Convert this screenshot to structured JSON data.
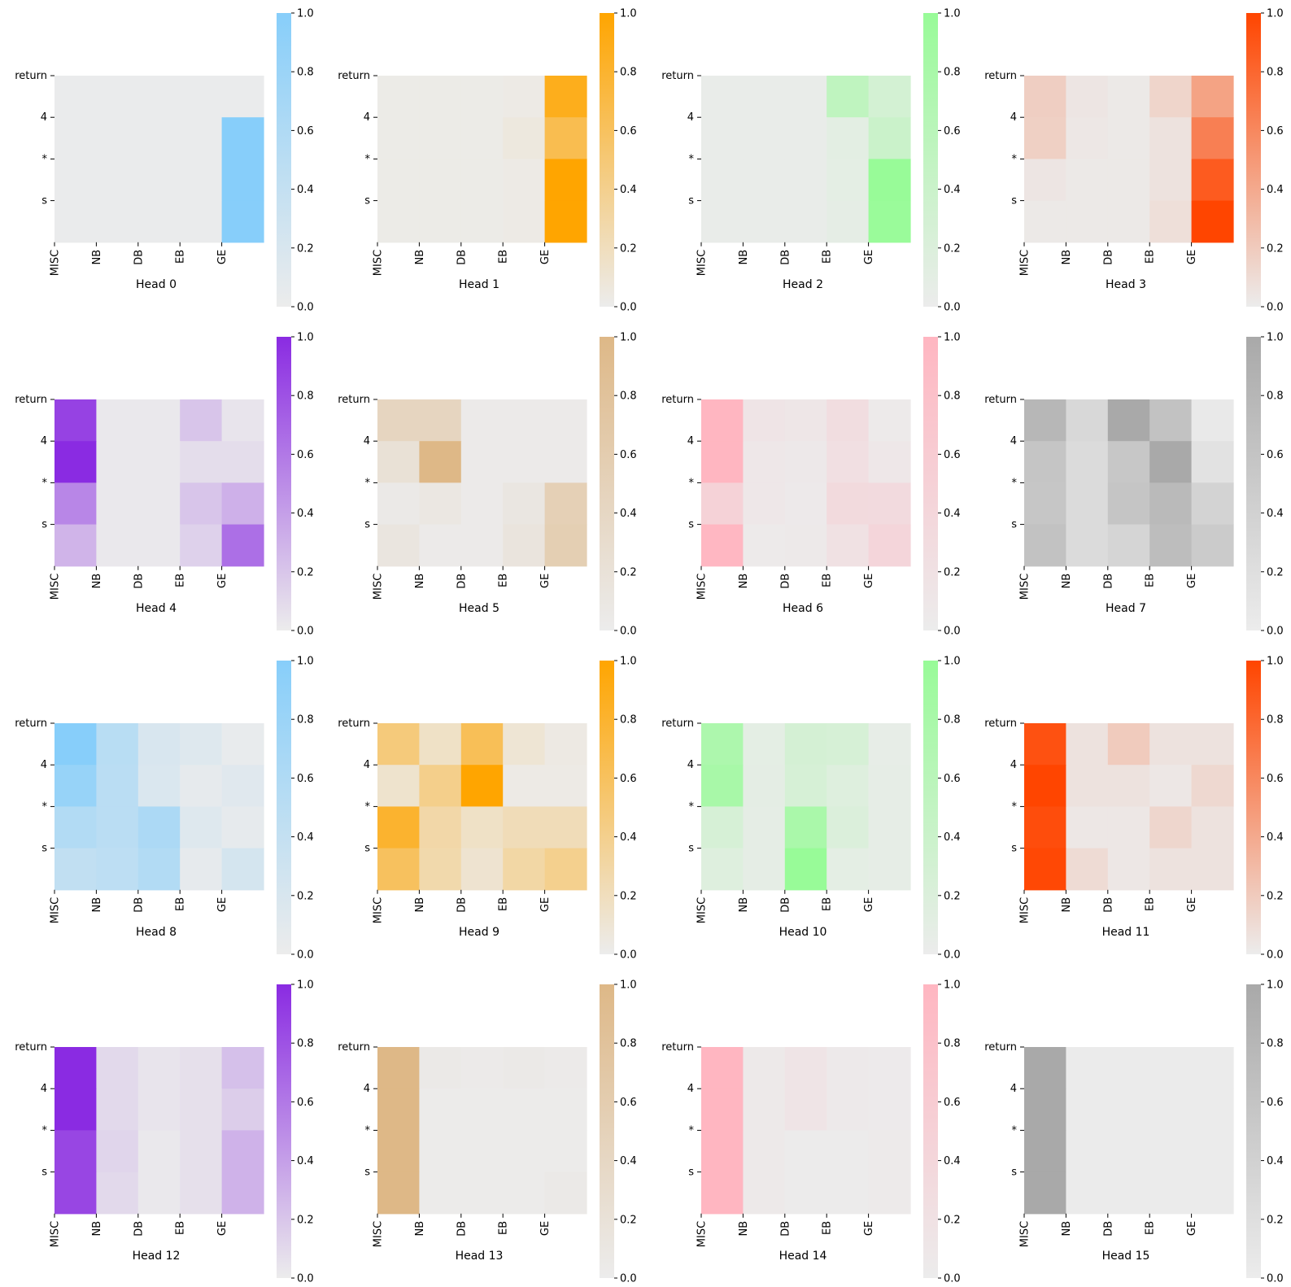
{
  "chart_data": {
    "type": "heatmap",
    "layout": {
      "rows": 4,
      "cols": 4
    },
    "row_labels": [
      "return",
      "4",
      "*",
      "s"
    ],
    "col_labels": [
      "MISC",
      "NB",
      "DB",
      "EB",
      "GE"
    ],
    "colorbar": {
      "min": 0.0,
      "max": 1.0,
      "ticks": [
        "0.0",
        "0.2",
        "0.4",
        "0.6",
        "0.8",
        "1.0"
      ]
    },
    "panels": [
      {
        "title": "Head 0",
        "color": "#87CEFA",
        "values": [
          [
            0.02,
            0.02,
            0.02,
            0.02,
            0.02
          ],
          [
            0.02,
            0.02,
            0.02,
            0.02,
            1.0
          ],
          [
            0.02,
            0.02,
            0.02,
            0.02,
            1.0
          ],
          [
            0.02,
            0.02,
            0.02,
            0.02,
            1.0
          ]
        ]
      },
      {
        "title": "Head 1",
        "color": "#FFA500",
        "values": [
          [
            0.02,
            0.02,
            0.02,
            0.03,
            0.88
          ],
          [
            0.02,
            0.02,
            0.02,
            0.06,
            0.66
          ],
          [
            0.02,
            0.02,
            0.02,
            0.03,
            1.0
          ],
          [
            0.02,
            0.02,
            0.02,
            0.03,
            1.0
          ]
        ]
      },
      {
        "title": "Head 2",
        "color": "#98FB98",
        "values": [
          [
            0.03,
            0.03,
            0.03,
            0.53,
            0.3
          ],
          [
            0.03,
            0.03,
            0.03,
            0.11,
            0.41
          ],
          [
            0.03,
            0.03,
            0.03,
            0.1,
            1.0
          ],
          [
            0.03,
            0.03,
            0.03,
            0.08,
            0.98
          ]
        ]
      },
      {
        "title": "Head 3",
        "color": "#FF4500",
        "values": [
          [
            0.18,
            0.04,
            0.02,
            0.14,
            0.44
          ],
          [
            0.17,
            0.03,
            0.02,
            0.06,
            0.65
          ],
          [
            0.04,
            0.02,
            0.02,
            0.06,
            0.87
          ],
          [
            0.02,
            0.02,
            0.02,
            0.08,
            1.0
          ]
        ]
      },
      {
        "title": "Head 4",
        "color": "#8A2BE2",
        "values": [
          [
            0.88,
            0.02,
            0.02,
            0.2,
            0.04
          ],
          [
            1.0,
            0.02,
            0.02,
            0.08,
            0.08
          ],
          [
            0.53,
            0.02,
            0.02,
            0.2,
            0.31
          ],
          [
            0.29,
            0.02,
            0.02,
            0.14,
            0.65
          ]
        ]
      },
      {
        "title": "Head 5",
        "color": "#DEB887",
        "values": [
          [
            0.44,
            0.44,
            0.03,
            0.03,
            0.03
          ],
          [
            0.22,
            1.0,
            0.03,
            0.03,
            0.03
          ],
          [
            0.05,
            0.1,
            0.03,
            0.11,
            0.53
          ],
          [
            0.13,
            0.03,
            0.03,
            0.15,
            0.56
          ]
        ]
      },
      {
        "title": "Head 6",
        "color": "#FFB6C1",
        "values": [
          [
            1.0,
            0.14,
            0.12,
            0.28,
            0.04
          ],
          [
            1.0,
            0.09,
            0.07,
            0.24,
            0.1
          ],
          [
            0.48,
            0.09,
            0.05,
            0.34,
            0.33
          ],
          [
            0.98,
            0.04,
            0.06,
            0.2,
            0.42
          ]
        ]
      },
      {
        "title": "Head 7",
        "color": "#A9A9A9",
        "values": [
          [
            0.79,
            0.3,
            1.0,
            0.62,
            0.04
          ],
          [
            0.58,
            0.26,
            0.55,
            1.0,
            0.15
          ],
          [
            0.57,
            0.25,
            0.58,
            0.75,
            0.38
          ],
          [
            0.62,
            0.25,
            0.34,
            0.7,
            0.5
          ]
        ]
      },
      {
        "title": "Head 8",
        "color": "#87CEFA",
        "values": [
          [
            1.0,
            0.51,
            0.2,
            0.14,
            0.04
          ],
          [
            0.84,
            0.5,
            0.18,
            0.06,
            0.12
          ],
          [
            0.57,
            0.5,
            0.63,
            0.14,
            0.06
          ],
          [
            0.43,
            0.47,
            0.57,
            0.06,
            0.24
          ]
        ]
      },
      {
        "title": "Head 9",
        "color": "#FFA500",
        "values": [
          [
            0.48,
            0.16,
            0.63,
            0.1,
            0.04
          ],
          [
            0.13,
            0.41,
            1.0,
            0.03,
            0.03
          ],
          [
            0.8,
            0.29,
            0.16,
            0.22,
            0.22
          ],
          [
            0.6,
            0.27,
            0.12,
            0.3,
            0.4
          ]
        ]
      },
      {
        "title": "Head 10",
        "color": "#98FB98",
        "values": [
          [
            0.75,
            0.1,
            0.28,
            0.26,
            0.06
          ],
          [
            0.81,
            0.09,
            0.26,
            0.17,
            0.07
          ],
          [
            0.26,
            0.08,
            0.79,
            0.2,
            0.07
          ],
          [
            0.17,
            0.08,
            1.0,
            0.1,
            0.07
          ]
        ]
      },
      {
        "title": "Head 11",
        "color": "#FF4500",
        "values": [
          [
            0.93,
            0.06,
            0.2,
            0.06,
            0.06
          ],
          [
            1.0,
            0.06,
            0.06,
            0.03,
            0.12
          ],
          [
            0.95,
            0.03,
            0.03,
            0.13,
            0.06
          ],
          [
            0.98,
            0.1,
            0.03,
            0.06,
            0.06
          ]
        ]
      },
      {
        "title": "Head 12",
        "color": "#8A2BE2",
        "values": [
          [
            1.0,
            0.1,
            0.04,
            0.06,
            0.23
          ],
          [
            1.0,
            0.1,
            0.04,
            0.06,
            0.16
          ],
          [
            0.86,
            0.12,
            0.02,
            0.06,
            0.3
          ],
          [
            0.86,
            0.1,
            0.02,
            0.06,
            0.3
          ]
        ]
      },
      {
        "title": "Head 13",
        "color": "#DEB887",
        "values": [
          [
            1.0,
            0.05,
            0.03,
            0.05,
            0.03
          ],
          [
            1.0,
            0.02,
            0.02,
            0.02,
            0.02
          ],
          [
            1.0,
            0.02,
            0.02,
            0.02,
            0.02
          ],
          [
            1.0,
            0.02,
            0.02,
            0.02,
            0.05
          ]
        ]
      },
      {
        "title": "Head 14",
        "color": "#FFB6C1",
        "values": [
          [
            1.0,
            0.06,
            0.14,
            0.05,
            0.03
          ],
          [
            1.0,
            0.06,
            0.14,
            0.05,
            0.03
          ],
          [
            1.0,
            0.06,
            0.02,
            0.02,
            0.04
          ],
          [
            1.0,
            0.06,
            0.02,
            0.02,
            0.04
          ]
        ]
      },
      {
        "title": "Head 15",
        "color": "#A9A9A9",
        "values": [
          [
            1.0,
            0.02,
            0.02,
            0.02,
            0.02
          ],
          [
            1.0,
            0.02,
            0.02,
            0.02,
            0.02
          ],
          [
            1.0,
            0.02,
            0.02,
            0.02,
            0.02
          ],
          [
            1.0,
            0.02,
            0.02,
            0.02,
            0.02
          ]
        ]
      }
    ]
  }
}
